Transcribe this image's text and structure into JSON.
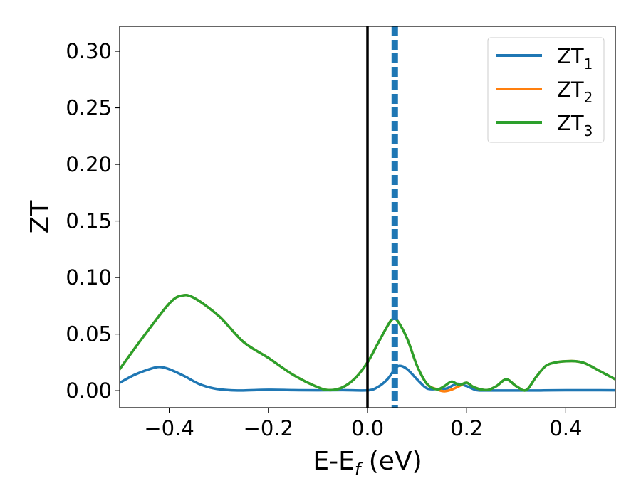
{
  "chart_data": {
    "type": "line",
    "xlabel": "E-E",
    "xlabel_sub": "f",
    "xlabel_unit": " (eV)",
    "ylabel": "ZT",
    "xlim": [
      -0.5,
      0.5
    ],
    "ylim": [
      -0.015,
      0.322
    ],
    "xticks": [
      -0.4,
      -0.2,
      0.0,
      0.2,
      0.4
    ],
    "xtick_labels": [
      "−0.4",
      "−0.2",
      "0.0",
      "0.2",
      "0.4"
    ],
    "yticks": [
      0.0,
      0.05,
      0.1,
      0.15,
      0.2,
      0.25,
      0.3
    ],
    "ytick_labels": [
      "0.00",
      "0.05",
      "0.10",
      "0.15",
      "0.20",
      "0.25",
      "0.30"
    ],
    "grid": false,
    "legend_position": "top-right",
    "vlines": [
      {
        "x": 0.0,
        "color": "#000000",
        "style": "solid"
      },
      {
        "x": 0.055,
        "color": "#1f77b4",
        "style": "dashed"
      }
    ],
    "series": [
      {
        "name": "ZT",
        "name_sub": "1",
        "color": "#1f77b4",
        "x": [
          -0.5,
          -0.47,
          -0.44,
          -0.42,
          -0.4,
          -0.37,
          -0.34,
          -0.31,
          -0.28,
          -0.25,
          -0.2,
          -0.15,
          -0.1,
          -0.05,
          0.0,
          0.02,
          0.04,
          0.055,
          0.065,
          0.08,
          0.1,
          0.12,
          0.14,
          0.16,
          0.18,
          0.2,
          0.22,
          0.25,
          0.3,
          0.35,
          0.4,
          0.45,
          0.5
        ],
        "y": [
          0.007,
          0.014,
          0.019,
          0.021,
          0.019,
          0.013,
          0.006,
          0.002,
          0.0005,
          0.0002,
          0.0008,
          0.0005,
          0.0003,
          0.0005,
          0.0003,
          0.003,
          0.01,
          0.019,
          0.022,
          0.019,
          0.01,
          0.002,
          0.0015,
          0.002,
          0.006,
          0.004,
          0.0005,
          0.0002,
          0.0002,
          0.0002,
          0.0004,
          0.0004,
          0.0003
        ]
      },
      {
        "name": "ZT",
        "name_sub": "2",
        "color": "#ff7f0e",
        "x": [
          -0.5,
          -0.45,
          -0.4,
          -0.375,
          -0.35,
          -0.3,
          -0.25,
          -0.2,
          -0.15,
          -0.1,
          -0.075,
          -0.05,
          -0.025,
          0.0,
          0.02,
          0.04,
          0.05,
          0.06,
          0.08,
          0.1,
          0.12,
          0.14,
          0.155,
          0.17,
          0.185,
          0.2,
          0.215,
          0.24,
          0.26,
          0.28,
          0.3,
          0.32,
          0.34,
          0.36,
          0.38,
          0.4,
          0.42,
          0.44,
          0.47,
          0.5
        ],
        "y": [
          0.019,
          0.049,
          0.077,
          0.084,
          0.082,
          0.066,
          0.043,
          0.029,
          0.014,
          0.003,
          0.0005,
          0.003,
          0.011,
          0.025,
          0.041,
          0.057,
          0.063,
          0.062,
          0.046,
          0.022,
          0.006,
          0.0012,
          -0.0005,
          0.001,
          0.004,
          0.007,
          0.003,
          0.0005,
          0.004,
          0.01,
          0.004,
          0.0005,
          0.012,
          0.022,
          0.025,
          0.026,
          0.026,
          0.024,
          0.017,
          0.01
        ]
      },
      {
        "name": "ZT",
        "name_sub": "3",
        "color": "#2ca02c",
        "x": [
          -0.5,
          -0.45,
          -0.4,
          -0.375,
          -0.35,
          -0.3,
          -0.25,
          -0.2,
          -0.15,
          -0.1,
          -0.075,
          -0.05,
          -0.025,
          0.0,
          0.02,
          0.04,
          0.05,
          0.06,
          0.08,
          0.1,
          0.12,
          0.14,
          0.155,
          0.17,
          0.185,
          0.2,
          0.215,
          0.24,
          0.26,
          0.28,
          0.3,
          0.32,
          0.34,
          0.36,
          0.38,
          0.4,
          0.42,
          0.44,
          0.47,
          0.5
        ],
        "y": [
          0.019,
          0.049,
          0.077,
          0.084,
          0.082,
          0.066,
          0.043,
          0.029,
          0.014,
          0.003,
          0.0005,
          0.003,
          0.011,
          0.025,
          0.041,
          0.057,
          0.063,
          0.062,
          0.046,
          0.022,
          0.006,
          0.0012,
          0.004,
          0.008,
          0.005,
          0.007,
          0.003,
          0.0005,
          0.004,
          0.01,
          0.004,
          0.0005,
          0.012,
          0.022,
          0.025,
          0.026,
          0.026,
          0.024,
          0.017,
          0.01
        ]
      }
    ]
  }
}
